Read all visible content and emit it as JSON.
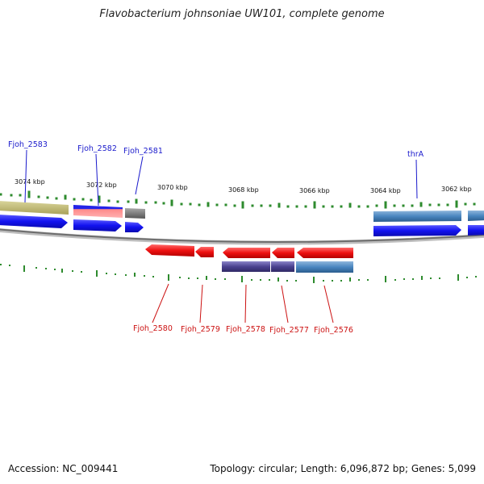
{
  "title": "Flavobacterium johnsoniae UW101, complete genome",
  "footer": {
    "accession": "Accession: NC_009441",
    "summary": "Topology: circular; Length: 6,096,872 bp; Genes: 5,099"
  },
  "colors": {
    "backbone": "#8a8a8a",
    "tick": "#2e8b2e",
    "cds_forward": "#1010ee",
    "cds_reverse": "#ee1111",
    "label_forward": "#1a1acc",
    "label_reverse": "#cc1111"
  },
  "scale_ticks": [
    {
      "id": "t3074",
      "label": "3074 kbp"
    },
    {
      "id": "t3072",
      "label": "3072 kbp"
    },
    {
      "id": "t3070",
      "label": "3070 kbp"
    },
    {
      "id": "t3068",
      "label": "3068 kbp"
    },
    {
      "id": "t3066",
      "label": "3066 kbp"
    },
    {
      "id": "t3064",
      "label": "3064 kbp"
    },
    {
      "id": "t3062",
      "label": "3062 kbp"
    }
  ],
  "top_labels": [
    {
      "id": "fjoh-2583",
      "text": "Fjoh_2583"
    },
    {
      "id": "fjoh-2582",
      "text": "Fjoh_2582"
    },
    {
      "id": "fjoh-2581",
      "text": "Fjoh_2581"
    },
    {
      "id": "thra",
      "text": "thrA"
    }
  ],
  "bottom_labels": [
    {
      "id": "fjoh-2580",
      "text": "Fjoh_2580"
    },
    {
      "id": "fjoh-2579",
      "text": "Fjoh_2579"
    },
    {
      "id": "fjoh-2578",
      "text": "Fjoh_2578"
    },
    {
      "id": "fjoh-2577",
      "text": "Fjoh_2577"
    },
    {
      "id": "fjoh-2576",
      "text": "Fjoh_2576"
    }
  ]
}
